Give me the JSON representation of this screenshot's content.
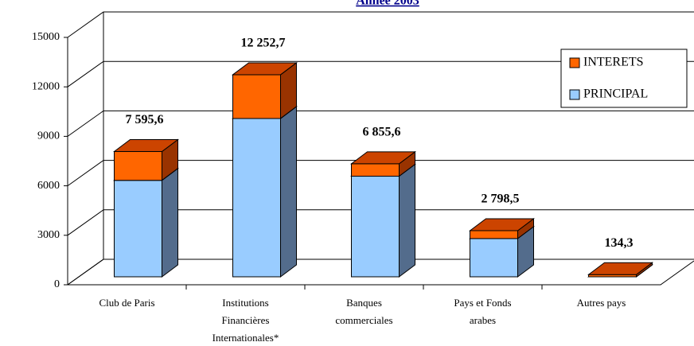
{
  "chart_data": {
    "type": "bar3d-stacked",
    "title": "Année 2003",
    "categories": [
      [
        "Club de Paris"
      ],
      [
        "Institutions",
        "Financières",
        "Internationales*"
      ],
      [
        "Banques",
        "commerciales"
      ],
      [
        "Pays et Fonds",
        "arabes"
      ],
      [
        "Autres pays"
      ]
    ],
    "series": [
      {
        "name": "PRINCIPAL",
        "color": "#99ccff",
        "side": "#536c8c",
        "values": [
          5850,
          9600,
          6100,
          2320,
          0
        ]
      },
      {
        "name": "INTERETS",
        "color": "#ff6600",
        "side": "#993300",
        "values": [
          1745.6,
          2652.7,
          755.6,
          478.5,
          134.3
        ]
      }
    ],
    "total_labels": [
      "7 595,6",
      "12 252,7",
      "6 855,6",
      "2 798,5",
      "134,3"
    ],
    "ylim": [
      0,
      15000
    ],
    "yticks": [
      0,
      3000,
      6000,
      9000,
      12000,
      15000
    ],
    "grid": true,
    "legend": "upper right"
  }
}
